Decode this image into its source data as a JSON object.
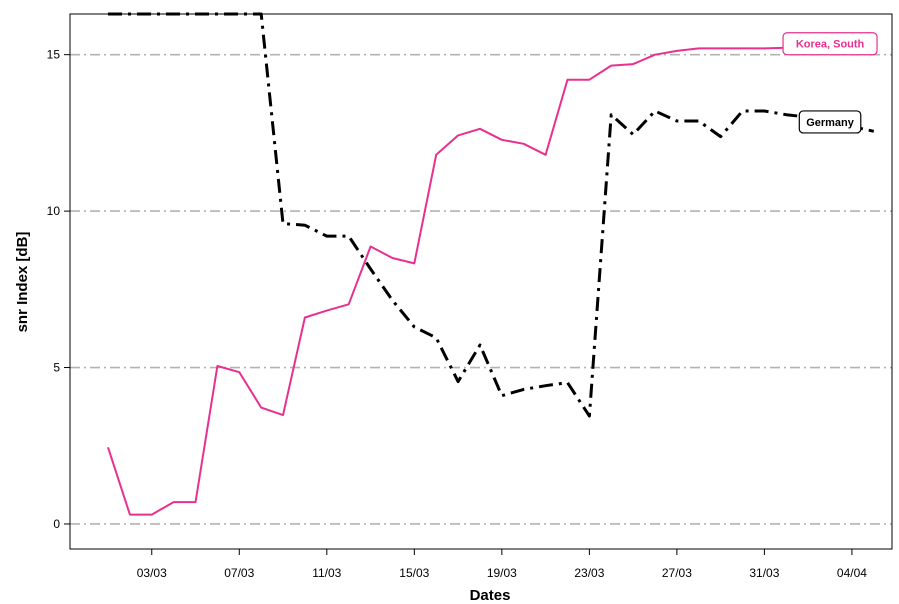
{
  "chart_data": {
    "type": "line",
    "title": "",
    "xlabel": "Dates",
    "ylabel": "snr Index [dB]",
    "x": [
      "01/03",
      "02/03",
      "03/03",
      "04/03",
      "05/03",
      "06/03",
      "07/03",
      "08/03",
      "09/03",
      "10/03",
      "11/03",
      "12/03",
      "13/03",
      "14/03",
      "15/03",
      "16/03",
      "17/03",
      "18/03",
      "19/03",
      "20/03",
      "21/03",
      "22/03",
      "23/03",
      "24/03",
      "25/03",
      "26/03",
      "27/03",
      "28/03",
      "29/03",
      "30/03",
      "31/03",
      "01/04",
      "02/04",
      "03/04",
      "04/04",
      "05/04"
    ],
    "x_ticks": [
      "03/03",
      "07/03",
      "11/03",
      "15/03",
      "19/03",
      "23/03",
      "27/03",
      "31/03",
      "04/04"
    ],
    "y_ticks": [
      0,
      5,
      10,
      15
    ],
    "ylim": [
      -0.8,
      16.3
    ],
    "grid": "horizontal dash-dot at y ticks",
    "series": [
      {
        "name": "Korea, South",
        "color": "#e8308f",
        "style": "solid",
        "values": [
          2.45,
          0.3,
          0.3,
          0.7,
          0.7,
          5.05,
          4.85,
          3.72,
          3.48,
          6.6,
          6.82,
          7.02,
          8.87,
          8.5,
          8.33,
          11.8,
          12.42,
          12.63,
          12.28,
          12.15,
          11.8,
          14.2,
          14.2,
          14.65,
          14.7,
          15.0,
          15.12,
          15.2,
          15.2,
          15.2,
          15.2,
          15.22,
          15.3,
          15.35,
          15.45,
          15.5
        ]
      },
      {
        "name": "Germany",
        "color": "#000000",
        "style": "dash-dot",
        "values": [
          16.3,
          16.3,
          16.3,
          16.3,
          16.3,
          16.3,
          16.3,
          16.3,
          9.6,
          9.55,
          9.2,
          9.2,
          8.15,
          7.15,
          6.3,
          5.95,
          4.55,
          5.72,
          4.1,
          4.3,
          4.42,
          4.52,
          3.45,
          13.08,
          12.45,
          13.2,
          12.88,
          12.88,
          12.38,
          13.2,
          13.2,
          13.08,
          13.0,
          12.85,
          12.7,
          12.55
        ]
      }
    ]
  }
}
